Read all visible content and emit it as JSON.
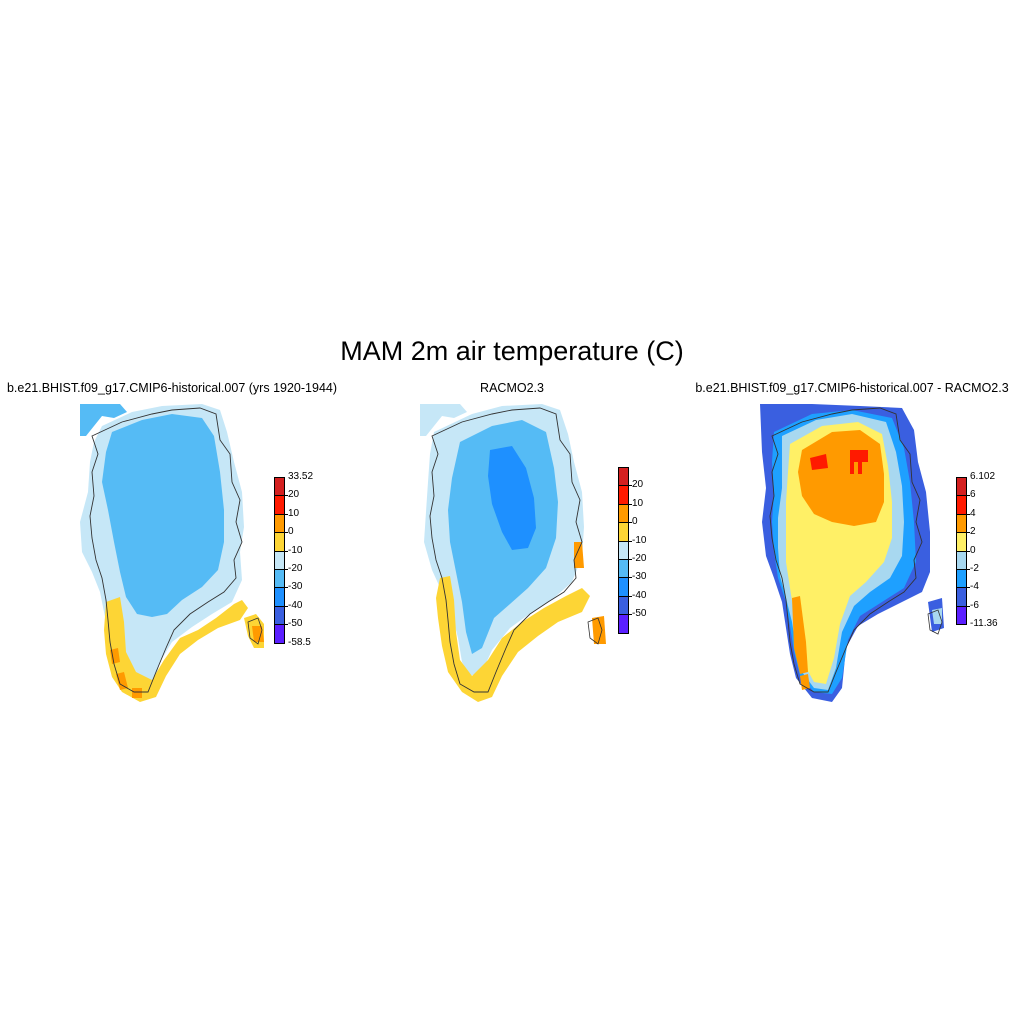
{
  "title": "MAM 2m air temperature (C)",
  "panels": [
    {
      "title": "b.e21.BHIST.f09_g17.CMIP6-historical.007 (yrs 1920-1944)",
      "colorbar": {
        "colors": [
          "#5b1fff",
          "#3a5fe0",
          "#1e90ff",
          "#55bbf5",
          "#c6e7f7",
          "#fdd535",
          "#ff9a00",
          "#ff1a00",
          "#d42020"
        ],
        "labels": [
          "-58.5",
          "-50",
          "-40",
          "-30",
          "-20",
          "-10",
          "0",
          "10",
          "20",
          "33.52"
        ]
      }
    },
    {
      "title": "RACMO2.3",
      "colorbar": {
        "colors": [
          "#5b1fff",
          "#3a5fe0",
          "#1e90ff",
          "#55bbf5",
          "#c6e7f7",
          "#fdd535",
          "#ff9a00",
          "#ff1a00",
          "#d42020"
        ],
        "labels": [
          "",
          "-50",
          "-40",
          "-30",
          "-20",
          "-10",
          "0",
          "10",
          "20",
          ""
        ]
      }
    },
    {
      "title": "b.e21.BHIST.f09_g17.CMIP6-historical.007 - RACMO2.3",
      "colorbar": {
        "colors": [
          "#5b1fff",
          "#3a5fe0",
          "#1ea0ff",
          "#a8d8f0",
          "#fff066",
          "#ff9a00",
          "#ff1a00",
          "#d42020"
        ],
        "labels": [
          "-11.36",
          "-6",
          "-4",
          "-2",
          "0",
          "2",
          "4",
          "6",
          "6.102"
        ]
      }
    }
  ]
}
